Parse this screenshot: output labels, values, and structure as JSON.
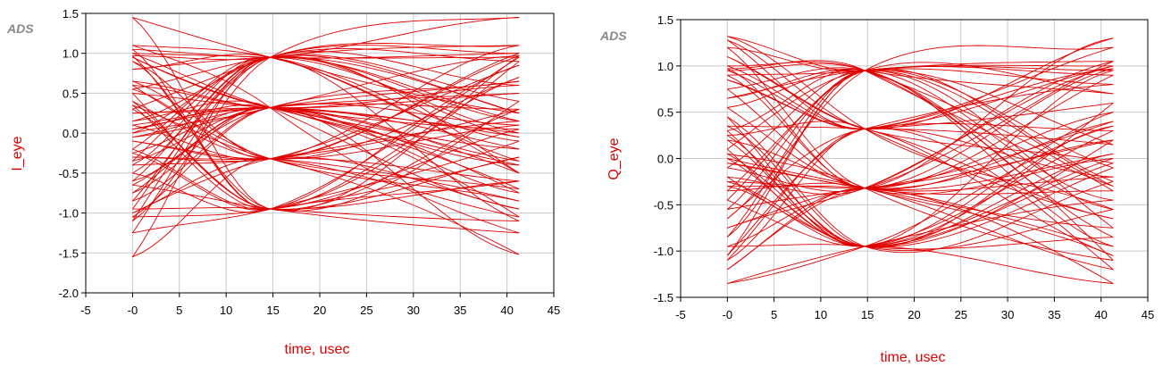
{
  "colors": {
    "trace": "#e00000",
    "grid": "#c8c8c8",
    "frame": "#000000"
  },
  "chart_data": [
    {
      "type": "line",
      "watermark": "ADS",
      "xlabel": "time, usec",
      "ylabel": "I_eye",
      "xlim": [
        -5,
        45
      ],
      "ylim": [
        -2.0,
        1.5
      ],
      "xticks": [
        "-5",
        "-0",
        "5",
        "10",
        "15",
        "20",
        "25",
        "30",
        "35",
        "40",
        "45"
      ],
      "yticks": [
        "1.5",
        "1.0",
        "0.5",
        "0.0",
        "-0.5",
        "-1.0",
        "-1.5",
        "-2.0"
      ],
      "grid": true,
      "x_range": [
        0,
        41.3
      ],
      "crossing_time": 14.7,
      "levels": [
        -0.95,
        -0.32,
        0.32,
        0.95
      ],
      "start_values": [
        1.45,
        1.1,
        1.05,
        1.0,
        0.97,
        0.95,
        0.9,
        0.8,
        0.65,
        0.6,
        0.55,
        0.5,
        0.4,
        0.35,
        0.3,
        0.25,
        0.15,
        0.1,
        0.05,
        0.0,
        -0.05,
        -0.1,
        -0.2,
        -0.25,
        -0.3,
        -0.35,
        -0.4,
        -0.5,
        -0.6,
        -0.65,
        -0.75,
        -0.85,
        -0.95,
        -1.0,
        -1.05,
        -1.1,
        -1.25,
        -1.55
      ],
      "end_values": [
        1.45,
        1.1,
        1.0,
        0.97,
        0.95,
        0.9,
        0.85,
        0.7,
        0.65,
        0.6,
        0.5,
        0.4,
        0.3,
        0.25,
        0.15,
        0.1,
        0.05,
        0.0,
        -0.05,
        -0.1,
        -0.2,
        -0.3,
        -0.35,
        -0.4,
        -0.5,
        -0.6,
        -0.7,
        -0.75,
        -0.85,
        -0.95,
        -1.05,
        -1.1,
        -1.25,
        -1.52
      ]
    },
    {
      "type": "line",
      "watermark": "ADS",
      "xlabel": "time, usec",
      "ylabel": "Q_eye",
      "xlim": [
        -5,
        45
      ],
      "ylim": [
        -1.5,
        1.5
      ],
      "xticks": [
        "-5",
        "-0",
        "5",
        "10",
        "15",
        "20",
        "25",
        "30",
        "35",
        "40",
        "45"
      ],
      "yticks": [
        "1.5",
        "1.0",
        "0.5",
        "0.0",
        "-0.5",
        "-1.0",
        "-1.5"
      ],
      "grid": true,
      "x_range": [
        0,
        41.3
      ],
      "crossing_time": 14.7,
      "levels": [
        -0.95,
        -0.32,
        0.32,
        0.95
      ],
      "start_values": [
        1.32,
        1.28,
        1.2,
        1.1,
        1.0,
        0.97,
        0.95,
        0.9,
        0.85,
        0.75,
        0.65,
        0.55,
        0.45,
        0.35,
        0.3,
        0.25,
        0.2,
        0.1,
        0.05,
        0.0,
        -0.05,
        -0.1,
        -0.2,
        -0.25,
        -0.3,
        -0.35,
        -0.45,
        -0.55,
        -0.65,
        -0.75,
        -0.85,
        -0.95,
        -1.05,
        -1.1,
        -1.2,
        -1.35
      ],
      "end_values": [
        1.3,
        1.2,
        1.05,
        1.0,
        0.97,
        0.95,
        0.9,
        0.8,
        0.7,
        0.6,
        0.5,
        0.4,
        0.35,
        0.3,
        0.2,
        0.15,
        0.05,
        0.0,
        -0.05,
        -0.1,
        -0.2,
        -0.25,
        -0.3,
        -0.35,
        -0.45,
        -0.55,
        -0.65,
        -0.75,
        -0.85,
        -0.95,
        -1.05,
        -1.1,
        -1.2,
        -1.35
      ]
    }
  ]
}
